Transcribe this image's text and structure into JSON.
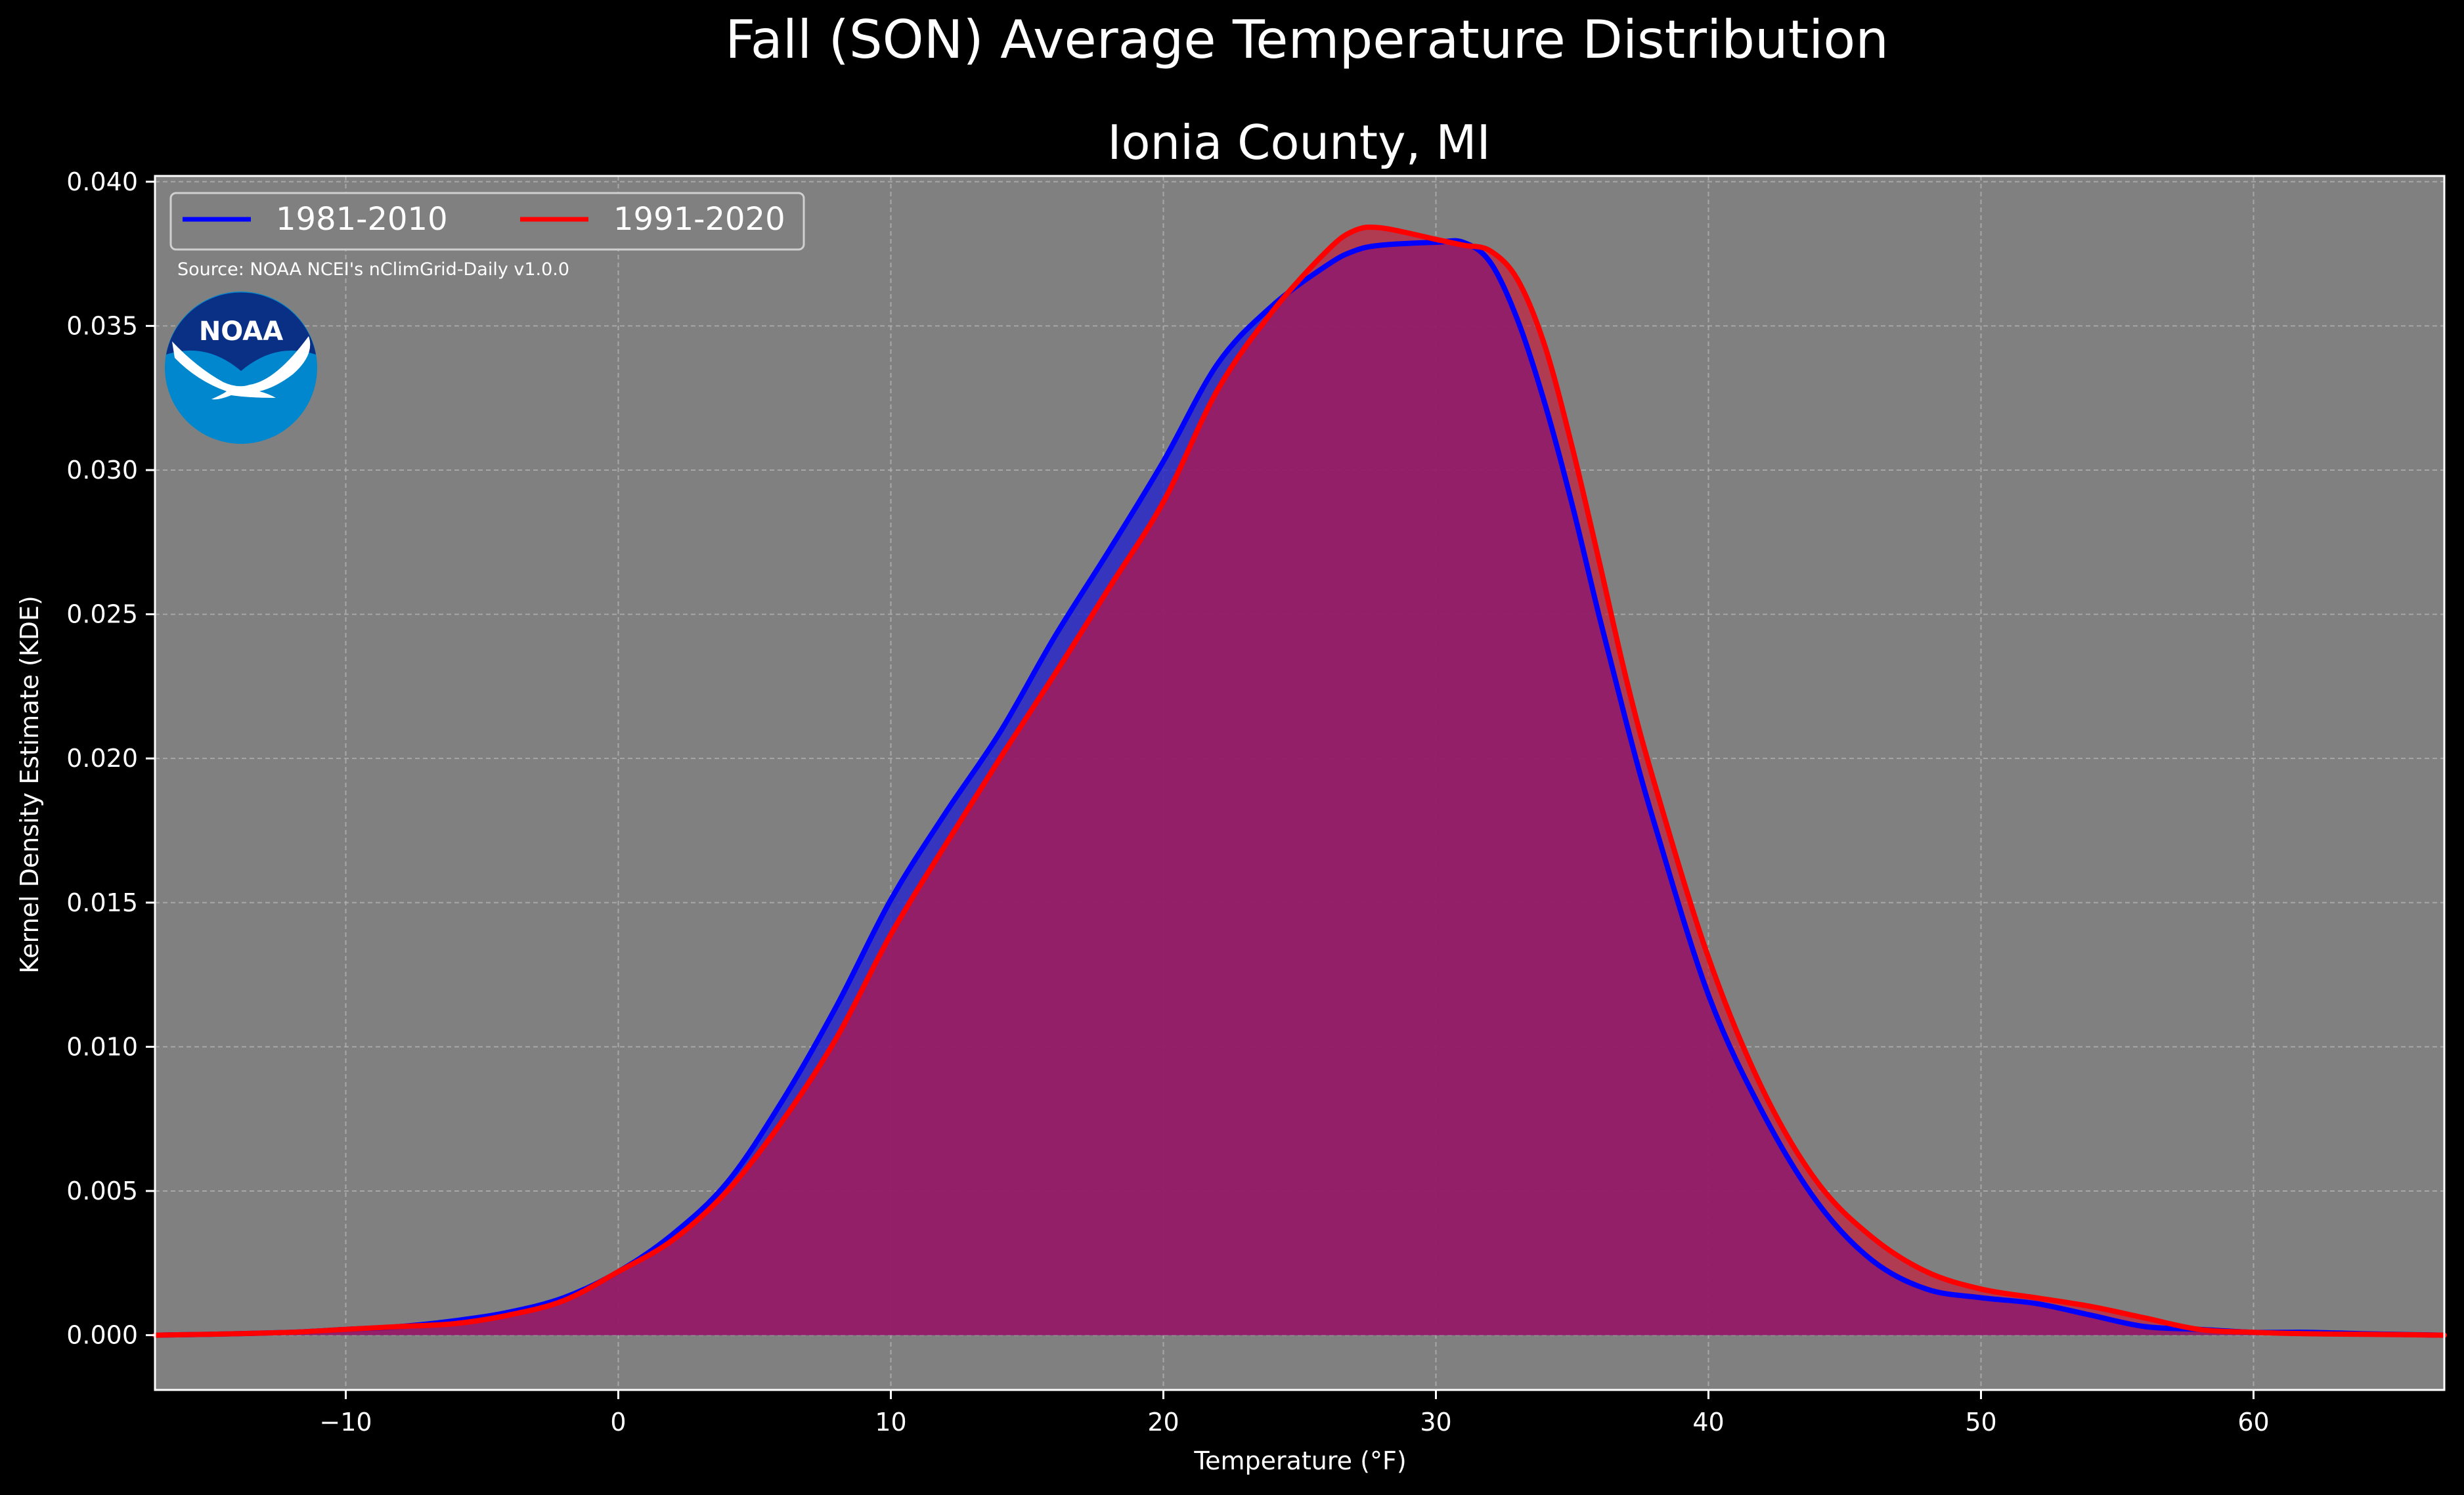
{
  "chart_data": {
    "type": "area",
    "title": "Fall (SON) Average Temperature Distribution",
    "subtitle": "Ionia County, MI",
    "xlabel": "Temperature (°F)",
    "ylabel": "Kernel Density Estimate (KDE)",
    "xlim": [
      -17,
      67
    ],
    "ylim": [
      -0.0019,
      0.0402
    ],
    "xticks": [
      -10,
      0,
      10,
      20,
      30,
      40,
      50,
      60
    ],
    "xtick_labels": [
      "−10",
      "0",
      "10",
      "20",
      "30",
      "40",
      "50",
      "60"
    ],
    "yticks": [
      0.0,
      0.005,
      0.01,
      0.015,
      0.02,
      0.025,
      0.03,
      0.035,
      0.04
    ],
    "ytick_labels": [
      "0.000",
      "0.005",
      "0.010",
      "0.015",
      "0.020",
      "0.025",
      "0.030",
      "0.035",
      "0.040"
    ],
    "grid": true,
    "legend_position": "top-left",
    "annotation": "Source: NOAA NCEI's nClimGrid-Daily v1.0.0",
    "logo_text": "NOAA",
    "colors": {
      "background": "#000000",
      "plot_background": "#808080",
      "series_1": "#0000ff",
      "series_2": "#ff0000",
      "fill_1": "#2222cc",
      "fill_2": "#cc1133",
      "logo_dark": "#0a3086",
      "logo_light": "#0087cd"
    },
    "series": [
      {
        "name": "1981-2010",
        "x": [
          -17,
          -15,
          -12,
          -10,
          -8,
          -6,
          -4,
          -2,
          0,
          2,
          4,
          6,
          8,
          10,
          12,
          14,
          16,
          18,
          20,
          22,
          24,
          26,
          27,
          28,
          30,
          31,
          32,
          33,
          34,
          35,
          36,
          37,
          38,
          40,
          42,
          44,
          46,
          48,
          50,
          52,
          54,
          56,
          58,
          60,
          62,
          64,
          67
        ],
        "y": [
          0.0,
          3e-05,
          0.0001,
          0.0002,
          0.0003,
          0.0005,
          0.0008,
          0.0013,
          0.0022,
          0.0035,
          0.0053,
          0.0081,
          0.0114,
          0.0151,
          0.0181,
          0.0209,
          0.0242,
          0.0272,
          0.0303,
          0.0337,
          0.0357,
          0.0371,
          0.0376,
          0.0378,
          0.0379,
          0.0379,
          0.0372,
          0.0352,
          0.0323,
          0.0288,
          0.0249,
          0.0212,
          0.0178,
          0.0118,
          0.0077,
          0.0046,
          0.0026,
          0.0016,
          0.0013,
          0.0011,
          0.0007,
          0.0003,
          0.0002,
          0.0001,
          0.0001,
          5e-05,
          0.0
        ]
      },
      {
        "name": "1991-2020",
        "x": [
          -17,
          -15,
          -12,
          -10,
          -8,
          -6,
          -4,
          -2,
          0,
          2,
          4,
          6,
          8,
          10,
          12,
          14,
          16,
          18,
          20,
          22,
          24,
          26,
          27,
          28,
          30,
          31,
          32,
          33,
          34,
          35,
          36,
          37,
          38,
          40,
          42,
          44,
          46,
          48,
          50,
          52,
          54,
          56,
          58,
          60,
          62,
          64,
          67
        ],
        "y": [
          0.0,
          3e-05,
          0.0001,
          0.0002,
          0.0003,
          0.0004,
          0.0007,
          0.0012,
          0.0022,
          0.0033,
          0.005,
          0.0074,
          0.0103,
          0.0139,
          0.017,
          0.02,
          0.0229,
          0.0259,
          0.0289,
          0.0328,
          0.0355,
          0.0376,
          0.0383,
          0.0384,
          0.038,
          0.0378,
          0.0376,
          0.0366,
          0.0343,
          0.0308,
          0.0268,
          0.0227,
          0.0192,
          0.0131,
          0.0085,
          0.0053,
          0.0034,
          0.0022,
          0.0016,
          0.0013,
          0.001,
          0.0006,
          0.0002,
          0.0001,
          5e-05,
          3e-05,
          0.0
        ]
      }
    ]
  }
}
